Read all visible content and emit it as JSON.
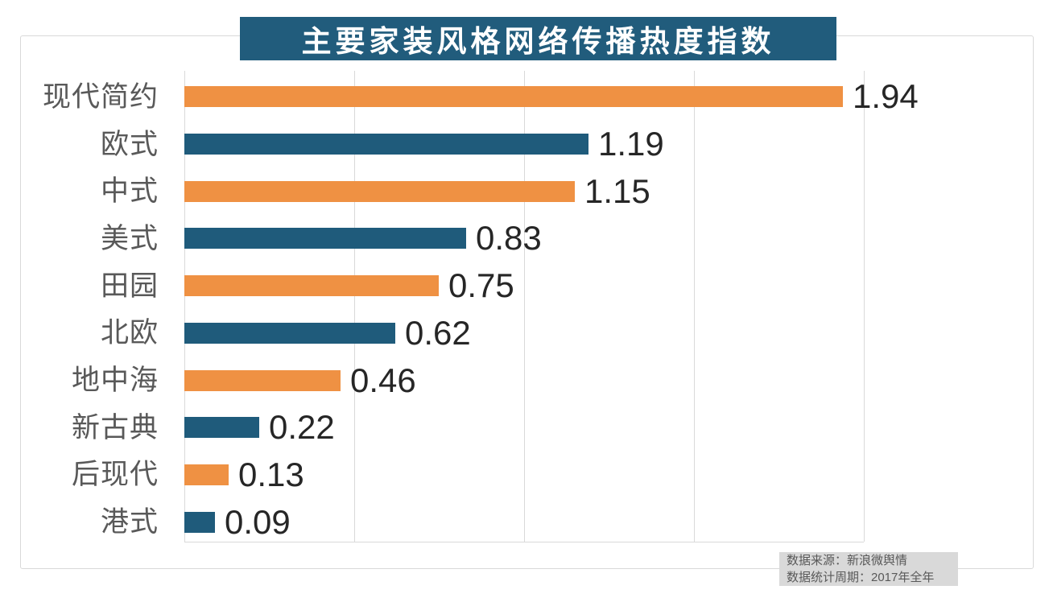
{
  "title": "主要家装风格网络传播热度指数",
  "source": {
    "line1": "数据来源：新浪微舆情",
    "line2": "数据统计周期：2017年全年"
  },
  "colors": {
    "bar_orange": "#ef9143",
    "bar_teal": "#1f5b7b",
    "title_bg": "#215c7c",
    "title_text": "#ffffff",
    "grid": "#d9d9d9",
    "category_label": "#595959",
    "value_label": "#262626",
    "source_bg": "#d9d9d9",
    "source_text": "#595959",
    "frame_border": "#d9d9d9"
  },
  "chart_data": {
    "type": "bar",
    "orientation": "horizontal",
    "title": "主要家装风格网络传播热度指数",
    "categories": [
      "现代简约",
      "欧式",
      "中式",
      "美式",
      "田园",
      "北欧",
      "地中海",
      "新古典",
      "后现代",
      "港式"
    ],
    "values": [
      1.94,
      1.19,
      1.15,
      0.83,
      0.75,
      0.62,
      0.46,
      0.22,
      0.13,
      0.09
    ],
    "value_labels": [
      "1.94",
      "1.19",
      "1.15",
      "0.83",
      "0.75",
      "0.62",
      "0.46",
      "0.22",
      "0.13",
      "0.09"
    ],
    "bar_colors_alternate": [
      "#ef9143",
      "#1f5b7b"
    ],
    "xlabel": "",
    "ylabel": "",
    "xlim": [
      0,
      2.5
    ],
    "gridlines": [
      0,
      0.5,
      1.0,
      1.5,
      2.0
    ],
    "grid": "vertical-only",
    "legend": false,
    "data_labels": "outside-end"
  }
}
